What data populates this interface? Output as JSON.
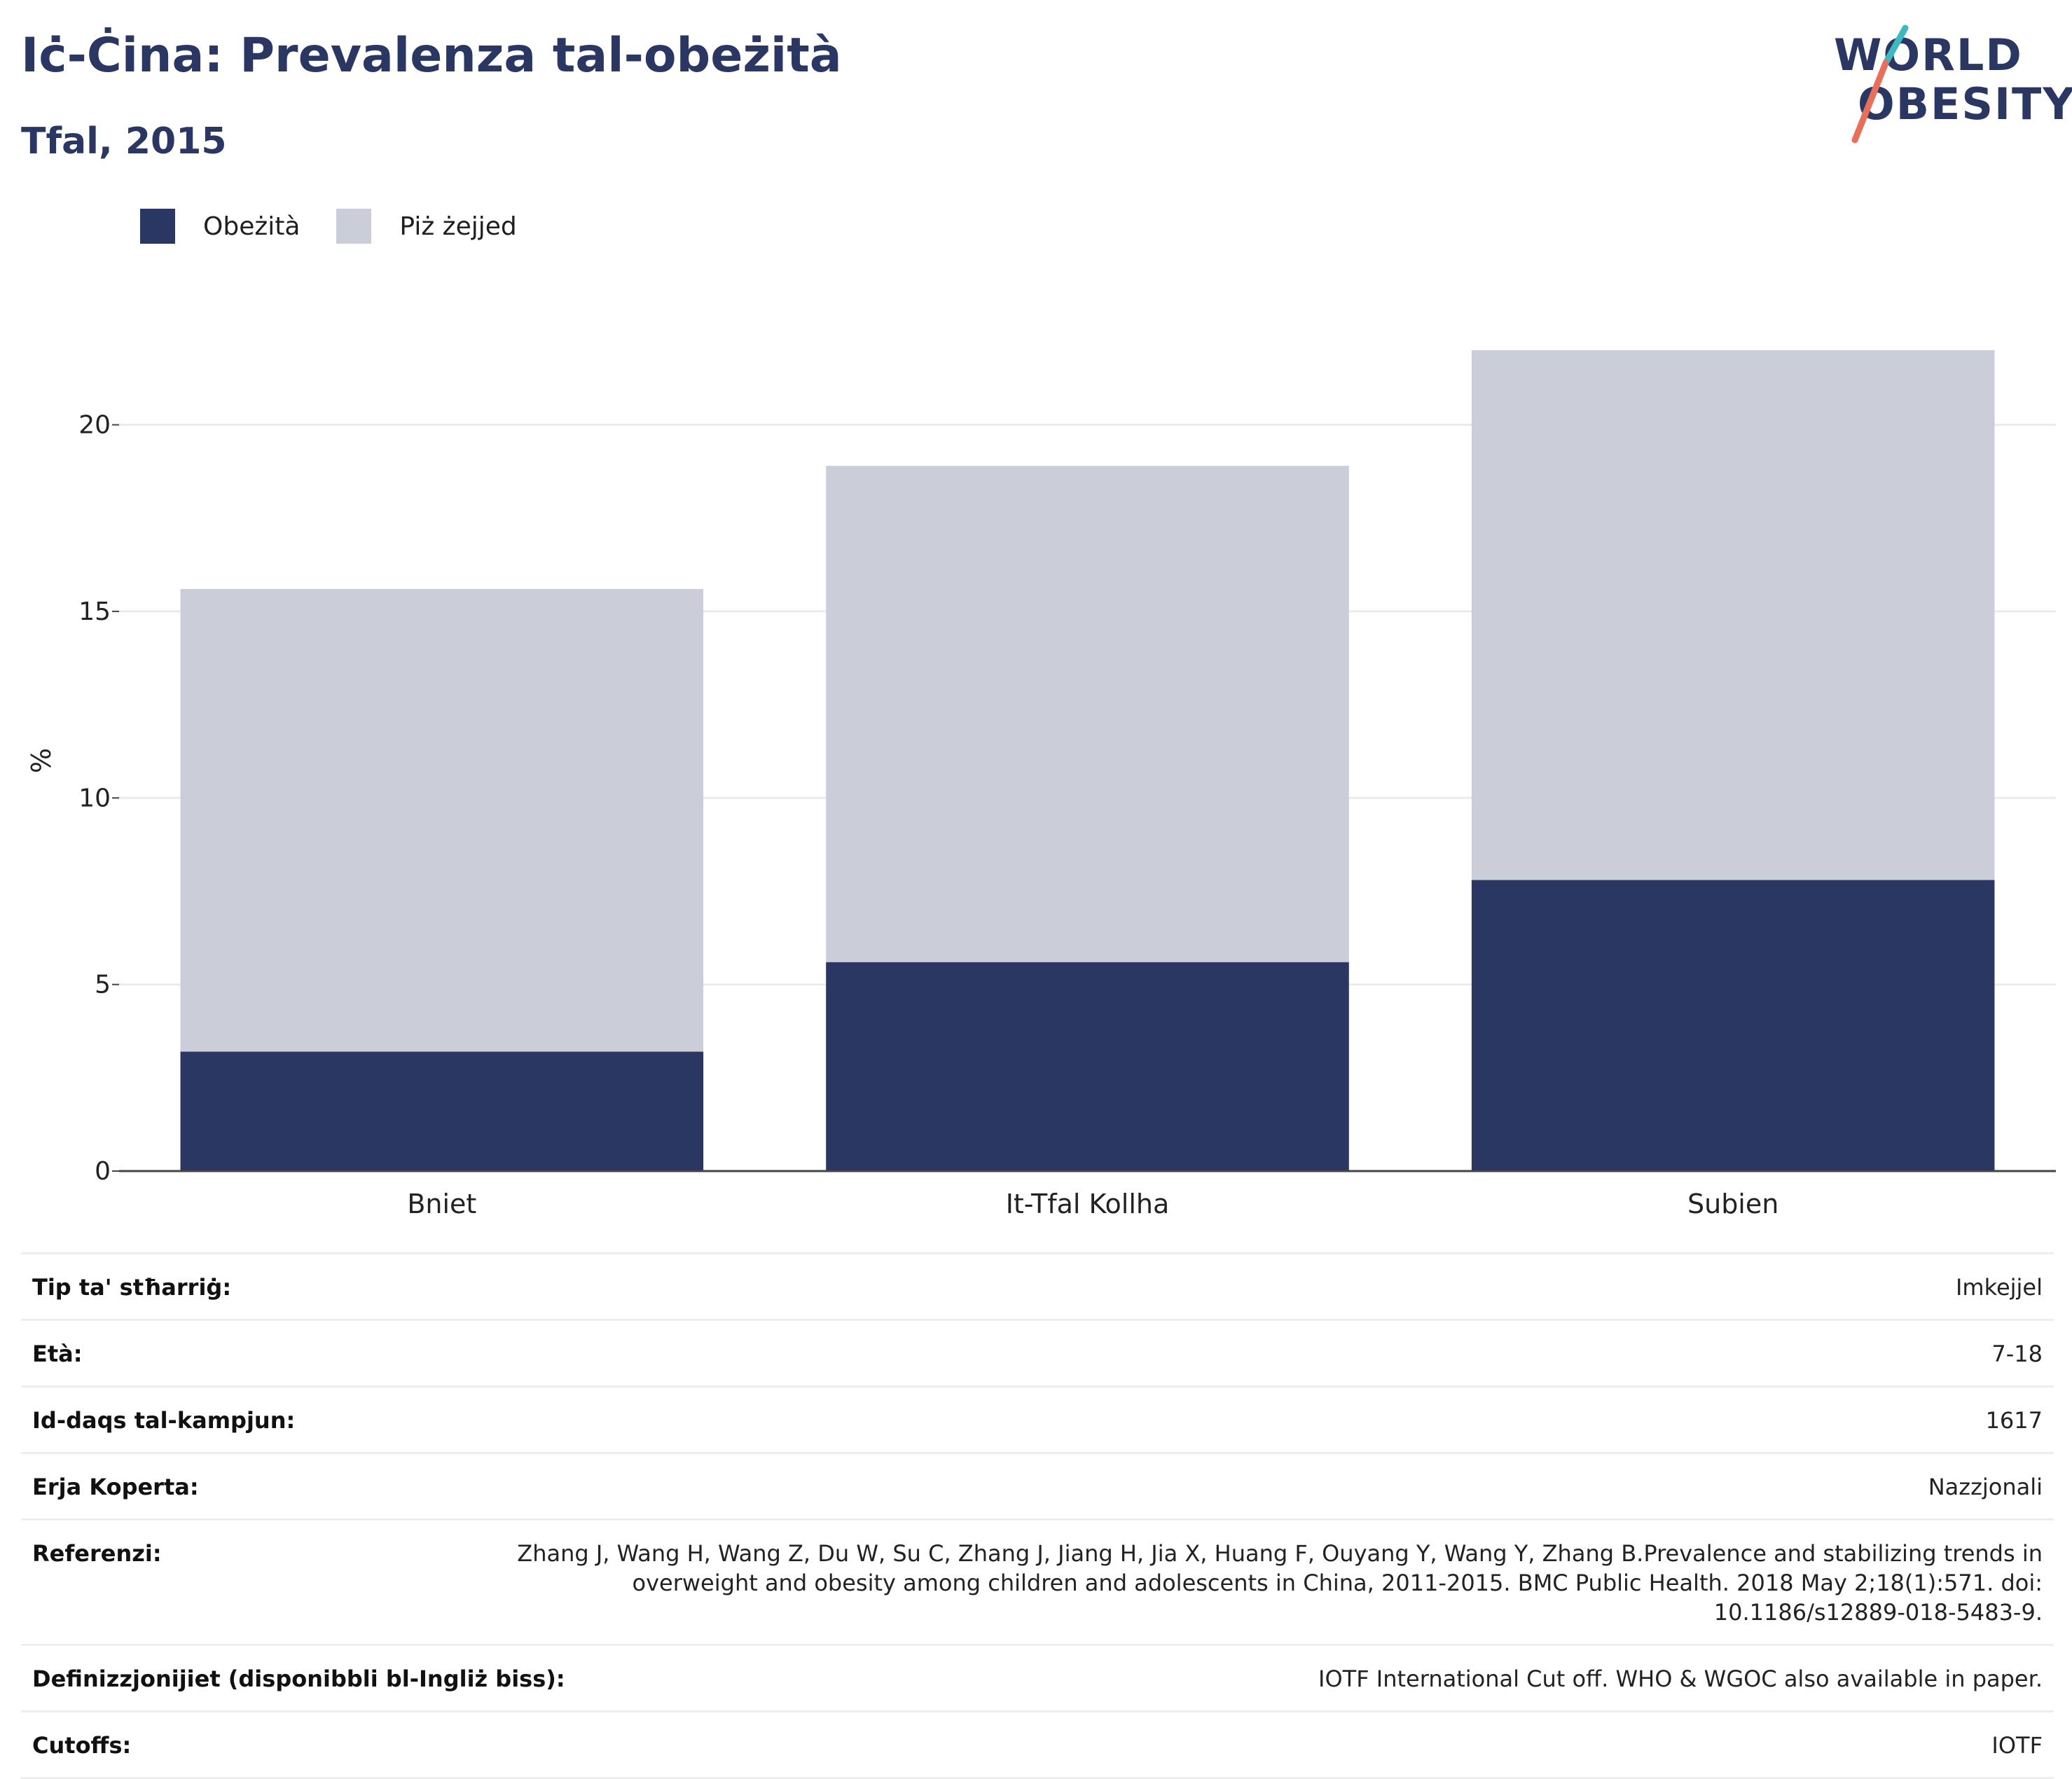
{
  "header": {
    "title": "Iċ-Ċina: Prevalenza tal-obeżità",
    "subtitle": "Tfal, 2015"
  },
  "logo": {
    "line1": "WORLD",
    "line2": "OBESITY",
    "accent_colors": [
      "#3fb8c0",
      "#e8705a"
    ]
  },
  "legend": {
    "items": [
      {
        "label": "Obeżità",
        "color": "#2b3763"
      },
      {
        "label": "Piż żejjed",
        "color": "#cbcdd9"
      }
    ]
  },
  "chart_data": {
    "type": "bar",
    "stacked": true,
    "categories": [
      "Bniet",
      "It-Tfal Kollha",
      "Subien"
    ],
    "series": [
      {
        "name": "Obeżità",
        "color": "#2b3763",
        "values": [
          3.2,
          5.6,
          7.8
        ]
      },
      {
        "name": "Piż żejjed",
        "color": "#cbcdd9",
        "values": [
          12.4,
          13.3,
          14.2
        ]
      }
    ],
    "ylabel": "%",
    "xlabel": "",
    "ylim": [
      0,
      22
    ],
    "yticks": [
      0,
      5,
      10,
      15,
      20
    ],
    "grid": true,
    "legend_position": "top-left"
  },
  "meta": {
    "rows": [
      {
        "label": "Tip ta' stħarriġ:",
        "value": "Imkejjel"
      },
      {
        "label": "Età:",
        "value": "7-18"
      },
      {
        "label": "Id-daqs tal-kampjun:",
        "value": "1617"
      },
      {
        "label": "Erja Koperta:",
        "value": "Nazzjonali"
      },
      {
        "label": "Referenzi:",
        "value": "Zhang J, Wang H, Wang Z, Du W, Su C, Zhang J, Jiang H, Jia X, Huang F, Ouyang Y, Wang Y, Zhang B.Prevalence and stabilizing trends in overweight and obesity among children and adolescents in China, 2011-2015. BMC Public Health. 2018 May 2;18(1):571. doi: 10.1186/s12889-018-5483-9."
      },
      {
        "label": "Definizzjonijiet (disponibbli bl-Ingliż biss):",
        "value": "IOTF International Cut off. WHO & WGOC also available in paper."
      },
      {
        "label": "Cutoffs:",
        "value": "IOTF"
      }
    ]
  }
}
